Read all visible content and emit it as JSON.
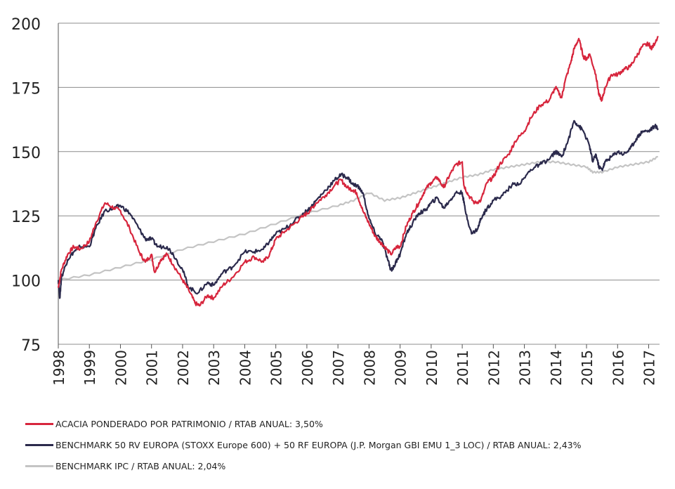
{
  "chart_data": {
    "type": "line",
    "title": "",
    "xlabel": "",
    "ylabel": "",
    "xlim": [
      1998.0,
      2017.35
    ],
    "ylim": [
      75,
      200
    ],
    "yticks": [
      75,
      100,
      125,
      150,
      175,
      200
    ],
    "xticks": [
      1998,
      1999,
      2000,
      2001,
      2002,
      2003,
      2004,
      2005,
      2006,
      2007,
      2008,
      2009,
      2010,
      2011,
      2012,
      2013,
      2014,
      2015,
      2016,
      2017
    ],
    "grid": "horizontal",
    "legend_position": "bottom",
    "series": [
      {
        "name": "ACACIA PONDERADO POR PATRIMONIO / RTAB ANUAL: 3,50%",
        "color": "#d7263d",
        "x": [
          1998.0,
          1998.1,
          1998.3,
          1998.5,
          1998.7,
          1999.0,
          1999.2,
          1999.5,
          1999.8,
          2000.0,
          2000.3,
          2000.6,
          2000.8,
          2001.0,
          2001.1,
          2001.3,
          2001.5,
          2001.7,
          2002.0,
          2002.2,
          2002.4,
          2002.55,
          2002.8,
          2003.0,
          2003.3,
          2003.6,
          2004.0,
          2004.3,
          2004.6,
          2004.8,
          2005.0,
          2005.3,
          2005.6,
          2005.9,
          2006.1,
          2006.3,
          2006.6,
          2006.9,
          2007.1,
          2007.3,
          2007.5,
          2007.6,
          2007.8,
          2008.0,
          2008.2,
          2008.35,
          2008.5,
          2008.7,
          2008.9,
          2009.0,
          2009.2,
          2009.4,
          2009.6,
          2009.8,
          2010.0,
          2010.2,
          2010.4,
          2010.6,
          2010.8,
          2011.0,
          2011.05,
          2011.2,
          2011.4,
          2011.6,
          2011.8,
          2012.0,
          2012.2,
          2012.5,
          2012.7,
          2013.0,
          2013.2,
          2013.5,
          2013.8,
          2014.0,
          2014.2,
          2014.3,
          2014.5,
          2014.6,
          2014.75,
          2014.9,
          2015.0,
          2015.1,
          2015.3,
          2015.4,
          2015.5,
          2015.6,
          2015.8,
          2016.0,
          2016.2,
          2016.4,
          2016.6,
          2016.8,
          2017.0,
          2017.1,
          2017.3
        ],
        "values": [
          97,
          104,
          110,
          113,
          112,
          115,
          122,
          130,
          128,
          127,
          120,
          111,
          107,
          110,
          103,
          108,
          110,
          106,
          100,
          96,
          91,
          90,
          94,
          93,
          98,
          101,
          107,
          109,
          107,
          110,
          116,
          119,
          122,
          125,
          127,
          130,
          133,
          137,
          139,
          136,
          135,
          134,
          127,
          122,
          117,
          115,
          113,
          110,
          113,
          113,
          121,
          126,
          130,
          135,
          138,
          140,
          136,
          141,
          145,
          146,
          137,
          133,
          130,
          131,
          138,
          140,
          145,
          149,
          154,
          158,
          163,
          168,
          170,
          175,
          171,
          177,
          185,
          190,
          194,
          187,
          186,
          188,
          180,
          172,
          170,
          175,
          180,
          180,
          182,
          183,
          187,
          191,
          192,
          190,
          195
        ]
      },
      {
        "name": "BENCHMARK 50 RV EUROPA (STOXX Europe 600) + 50 RF EUROPA (J.P. Morgan GBI EMU 1_3 LOC) / RTAB ANUAL:  2,43%",
        "color": "#2b2a4c",
        "x": [
          1998.0,
          1998.05,
          1998.1,
          1998.3,
          1998.5,
          1998.7,
          1999.0,
          1999.2,
          1999.5,
          1999.8,
          2000.0,
          2000.3,
          2000.6,
          2000.8,
          2001.0,
          2001.2,
          2001.5,
          2001.7,
          2002.0,
          2002.2,
          2002.5,
          2002.8,
          2003.0,
          2003.3,
          2003.6,
          2004.0,
          2004.3,
          2004.6,
          2004.8,
          2005.0,
          2005.3,
          2005.6,
          2005.9,
          2006.1,
          2006.3,
          2006.6,
          2006.9,
          2007.1,
          2007.3,
          2007.5,
          2007.6,
          2007.8,
          2008.0,
          2008.2,
          2008.4,
          2008.6,
          2008.7,
          2008.8,
          2008.9,
          2009.0,
          2009.2,
          2009.4,
          2009.6,
          2009.8,
          2010.0,
          2010.2,
          2010.4,
          2010.6,
          2010.8,
          2011.0,
          2011.1,
          2011.3,
          2011.5,
          2011.6,
          2011.8,
          2012.0,
          2012.3,
          2012.6,
          2012.9,
          2013.2,
          2013.5,
          2013.8,
          2014.0,
          2014.2,
          2014.4,
          2014.6,
          2014.75,
          2014.9,
          2015.1,
          2015.2,
          2015.3,
          2015.4,
          2015.5,
          2015.6,
          2015.8,
          2016.0,
          2016.2,
          2016.4,
          2016.6,
          2016.8,
          2017.0,
          2017.2,
          2017.3
        ],
        "values": [
          100,
          93,
          101,
          108,
          111,
          113,
          113,
          120,
          127,
          128,
          129,
          126,
          120,
          116,
          116,
          113,
          113,
          110,
          104,
          97,
          95,
          99,
          98,
          103,
          105,
          111,
          111,
          112,
          115,
          118,
          120,
          123,
          126,
          128,
          131,
          135,
          139,
          141,
          140,
          137,
          137,
          134,
          124,
          118,
          116,
          108,
          104,
          105,
          108,
          110,
          118,
          122,
          126,
          127,
          130,
          132,
          128,
          131,
          134,
          134,
          127,
          118,
          120,
          124,
          128,
          131,
          133,
          137,
          138,
          143,
          145,
          147,
          150,
          148,
          154,
          162,
          160,
          158,
          152,
          146,
          149,
          144,
          143,
          146,
          148,
          150,
          149,
          151,
          155,
          158,
          158,
          160,
          159
        ]
      },
      {
        "name": "BENCHMARK IPC / RTAB ANUAL:  2,04%",
        "color": "#c4c4c4",
        "x": [
          1998.0,
          1999.0,
          2000.0,
          2001.0,
          2002.0,
          2003.0,
          2004.0,
          2005.0,
          2006.0,
          2007.0,
          2007.5,
          2008.0,
          2008.5,
          2009.0,
          2009.5,
          2010.0,
          2010.5,
          2011.0,
          2011.5,
          2012.0,
          2012.5,
          2013.0,
          2013.5,
          2014.0,
          2014.5,
          2015.0,
          2015.2,
          2015.5,
          2016.0,
          2016.5,
          2017.0,
          2017.3
        ],
        "values": [
          100,
          102,
          105,
          108,
          112,
          115,
          118,
          122,
          126,
          129,
          131,
          134,
          131,
          132,
          134,
          136,
          138,
          140,
          141,
          143,
          144,
          145,
          146,
          146,
          145,
          144,
          142,
          142,
          144,
          145,
          146,
          148
        ]
      }
    ]
  }
}
